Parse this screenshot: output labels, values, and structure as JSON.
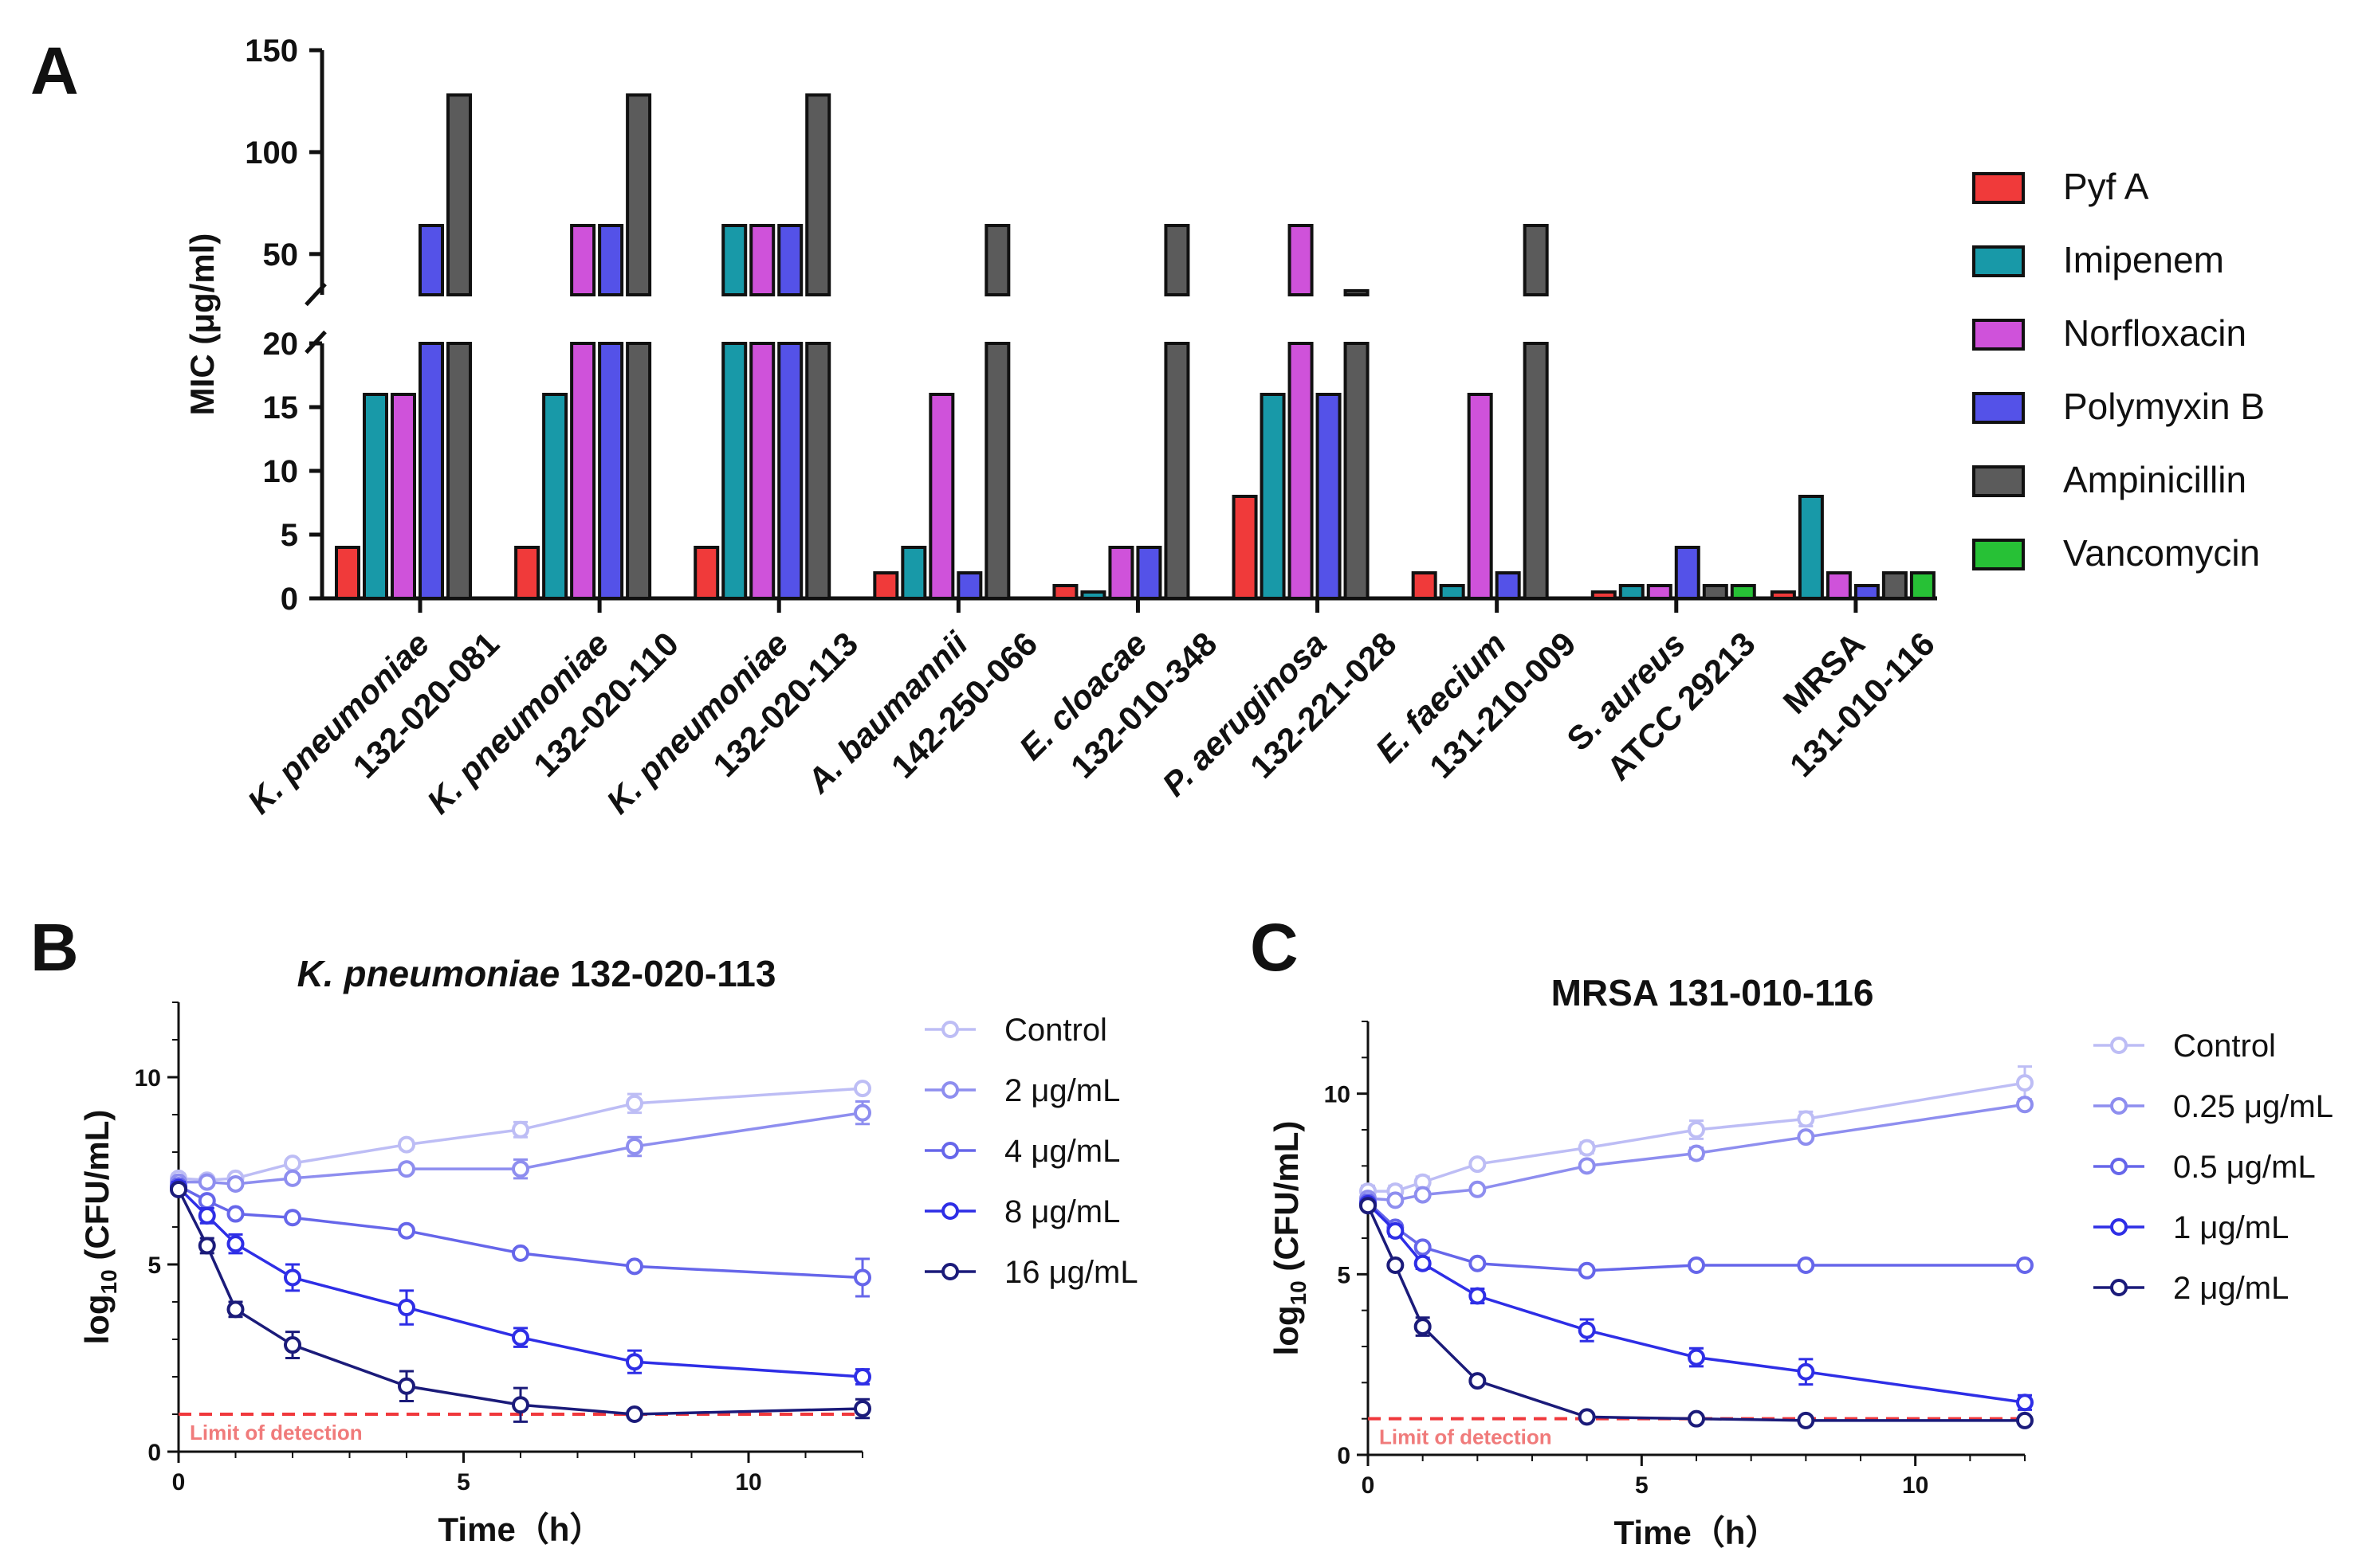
{
  "panels": {
    "a": "A",
    "b": "B",
    "c": "C"
  },
  "chart_data": [
    {
      "type": "bar",
      "id": "A",
      "ylabel": "MIC (μg/ml)",
      "axis_break": {
        "lower_range": [
          0,
          20
        ],
        "upper_range": [
          30,
          150
        ]
      },
      "yticks_lower": [
        0,
        5,
        10,
        15,
        20
      ],
      "yticks_upper": [
        50,
        100,
        150
      ],
      "categories": [
        {
          "name": "K. pneumoniae",
          "id": "132-020-081"
        },
        {
          "name": "K. pneumoniae",
          "id": "132-020-110"
        },
        {
          "name": "K. pneumoniae",
          "id": "132-020-113"
        },
        {
          "name": "A. baumannii",
          "id": "142-250-066"
        },
        {
          "name": "E. cloacae",
          "id": "132-010-348"
        },
        {
          "name": "P. aeruginosa",
          "id": "132-221-028"
        },
        {
          "name": "E. faecium",
          "id": "131-210-009"
        },
        {
          "name": "S. aureus",
          "id": "ATCC 29213"
        },
        {
          "name": "MRSA",
          "id": "131-010-116"
        }
      ],
      "series": [
        {
          "name": "Pyf A",
          "color": "#f03a3a",
          "values": [
            4,
            4,
            4,
            2,
            1,
            8,
            2,
            0.5,
            0.5
          ]
        },
        {
          "name": "Imipenem",
          "color": "#1899a8",
          "values": [
            16,
            16,
            64,
            4,
            0.5,
            16,
            1,
            1,
            8
          ]
        },
        {
          "name": "Norfloxacin",
          "color": "#cf52da",
          "values": [
            16,
            64,
            64,
            16,
            4,
            64,
            16,
            1,
            2
          ]
        },
        {
          "name": "Polymyxin B",
          "color": "#5452e8",
          "values": [
            64,
            64,
            64,
            2,
            4,
            16,
            2,
            4,
            1
          ]
        },
        {
          "name": "Ampinicillin",
          "color": "#5b5b5b",
          "values": [
            128,
            128,
            128,
            64,
            64,
            32,
            64,
            1,
            2
          ]
        },
        {
          "name": "Vancomycin",
          "color": "#27c136",
          "values": [
            null,
            null,
            null,
            null,
            null,
            null,
            null,
            1,
            2
          ]
        }
      ]
    },
    {
      "type": "line",
      "id": "B",
      "title_italic": "K. pneumoniae",
      "title_rest": " 132-020-113",
      "xlabel": "Time（h）",
      "ylabel_main": "log",
      "ylabel_sub": "10",
      "ylabel_rest": " (CFU/mL)",
      "xlim": [
        0,
        12
      ],
      "ylim": [
        0,
        12
      ],
      "xticks": [
        0,
        5,
        10
      ],
      "yticks": [
        0,
        5,
        10
      ],
      "limit_of_detection": 1,
      "lod_label": "Limit of detection",
      "x": [
        0,
        0.5,
        1,
        2,
        4,
        6,
        8,
        12
      ],
      "series": [
        {
          "name": "Control",
          "color": "#bdbdf5",
          "values": [
            7.3,
            7.25,
            7.3,
            7.7,
            8.2,
            8.6,
            9.3,
            9.7
          ],
          "errors": [
            0.12,
            0.1,
            0.1,
            0.1,
            0.12,
            0.2,
            0.25,
            0.1
          ]
        },
        {
          "name": "2 μg/mL",
          "color": "#8e8eef",
          "values": [
            7.2,
            7.2,
            7.15,
            7.3,
            7.55,
            7.55,
            8.15,
            9.05
          ],
          "errors": [
            0.1,
            0.1,
            0.1,
            0.1,
            0.1,
            0.25,
            0.25,
            0.3
          ]
        },
        {
          "name": "4 μg/mL",
          "color": "#6666ea",
          "values": [
            7.1,
            6.7,
            6.35,
            6.25,
            5.9,
            5.3,
            4.95,
            4.65
          ],
          "errors": [
            0.1,
            0.1,
            0.1,
            0.1,
            0.1,
            0.1,
            0.1,
            0.5
          ]
        },
        {
          "name": "8 μg/mL",
          "color": "#2e2ee6",
          "values": [
            7.05,
            6.3,
            5.55,
            4.65,
            3.85,
            3.05,
            2.4,
            2.0
          ],
          "errors": [
            0.15,
            0.2,
            0.25,
            0.35,
            0.45,
            0.25,
            0.3,
            0.2
          ]
        },
        {
          "name": "16 μg/mL",
          "color": "#1b1b7a",
          "values": [
            7.0,
            5.5,
            3.8,
            2.85,
            1.75,
            1.25,
            1.0,
            1.15
          ],
          "errors": [
            0.1,
            0.2,
            0.2,
            0.35,
            0.4,
            0.45,
            0.05,
            0.25
          ]
        }
      ],
      "legend": [
        "Control",
        "2 μg/mL",
        "4 μg/mL",
        "8 μg/mL",
        "16 μg/mL"
      ]
    },
    {
      "type": "line",
      "id": "C",
      "title_italic": "",
      "title_rest": "MRSA 131-010-116",
      "xlabel": "Time（h）",
      "ylabel_main": "log",
      "ylabel_sub": "10",
      "ylabel_rest": " (CFU/mL)",
      "xlim": [
        0,
        12
      ],
      "ylim": [
        0,
        12
      ],
      "xticks": [
        0,
        5,
        10
      ],
      "yticks": [
        0,
        5,
        10
      ],
      "limit_of_detection": 1,
      "lod_label": "Limit of detection",
      "x": [
        0,
        0.5,
        1,
        2,
        4,
        6,
        8,
        12
      ],
      "series": [
        {
          "name": "Control",
          "color": "#bdbdf5",
          "values": [
            7.3,
            7.3,
            7.55,
            8.05,
            8.5,
            9.0,
            9.3,
            10.3
          ],
          "errors": [
            0.15,
            0.15,
            0.15,
            0.1,
            0.15,
            0.25,
            0.2,
            0.45
          ]
        },
        {
          "name": "0.25 μg/mL",
          "color": "#8e8eef",
          "values": [
            7.1,
            7.05,
            7.2,
            7.35,
            8.0,
            8.35,
            8.8,
            9.7
          ],
          "errors": [
            0.1,
            0.1,
            0.1,
            0.1,
            0.1,
            0.15,
            0.1,
            0.1
          ]
        },
        {
          "name": "0.5 μg/mL",
          "color": "#6666ea",
          "values": [
            7.0,
            6.3,
            5.75,
            5.3,
            5.1,
            5.25,
            5.25,
            5.25
          ],
          "errors": [
            0.1,
            0.1,
            0.1,
            0.1,
            0.1,
            0.1,
            0.1,
            0.1
          ]
        },
        {
          "name": "1 μg/mL",
          "color": "#2e2ee6",
          "values": [
            6.95,
            6.2,
            5.3,
            4.4,
            3.45,
            2.7,
            2.3,
            1.45
          ],
          "errors": [
            0.1,
            0.15,
            0.15,
            0.2,
            0.3,
            0.25,
            0.35,
            0.2
          ]
        },
        {
          "name": "2 μg/mL",
          "color": "#1b1b7a",
          "values": [
            6.9,
            5.25,
            3.55,
            2.05,
            1.05,
            1.0,
            0.95,
            0.95
          ],
          "errors": [
            0.1,
            0.1,
            0.25,
            0.1,
            0.1,
            0.05,
            0.05,
            0.05
          ]
        }
      ],
      "legend": [
        "Control",
        "0.25 μg/mL",
        "0.5 μg/mL",
        "1 μg/mL",
        "2 μg/mL"
      ]
    }
  ]
}
